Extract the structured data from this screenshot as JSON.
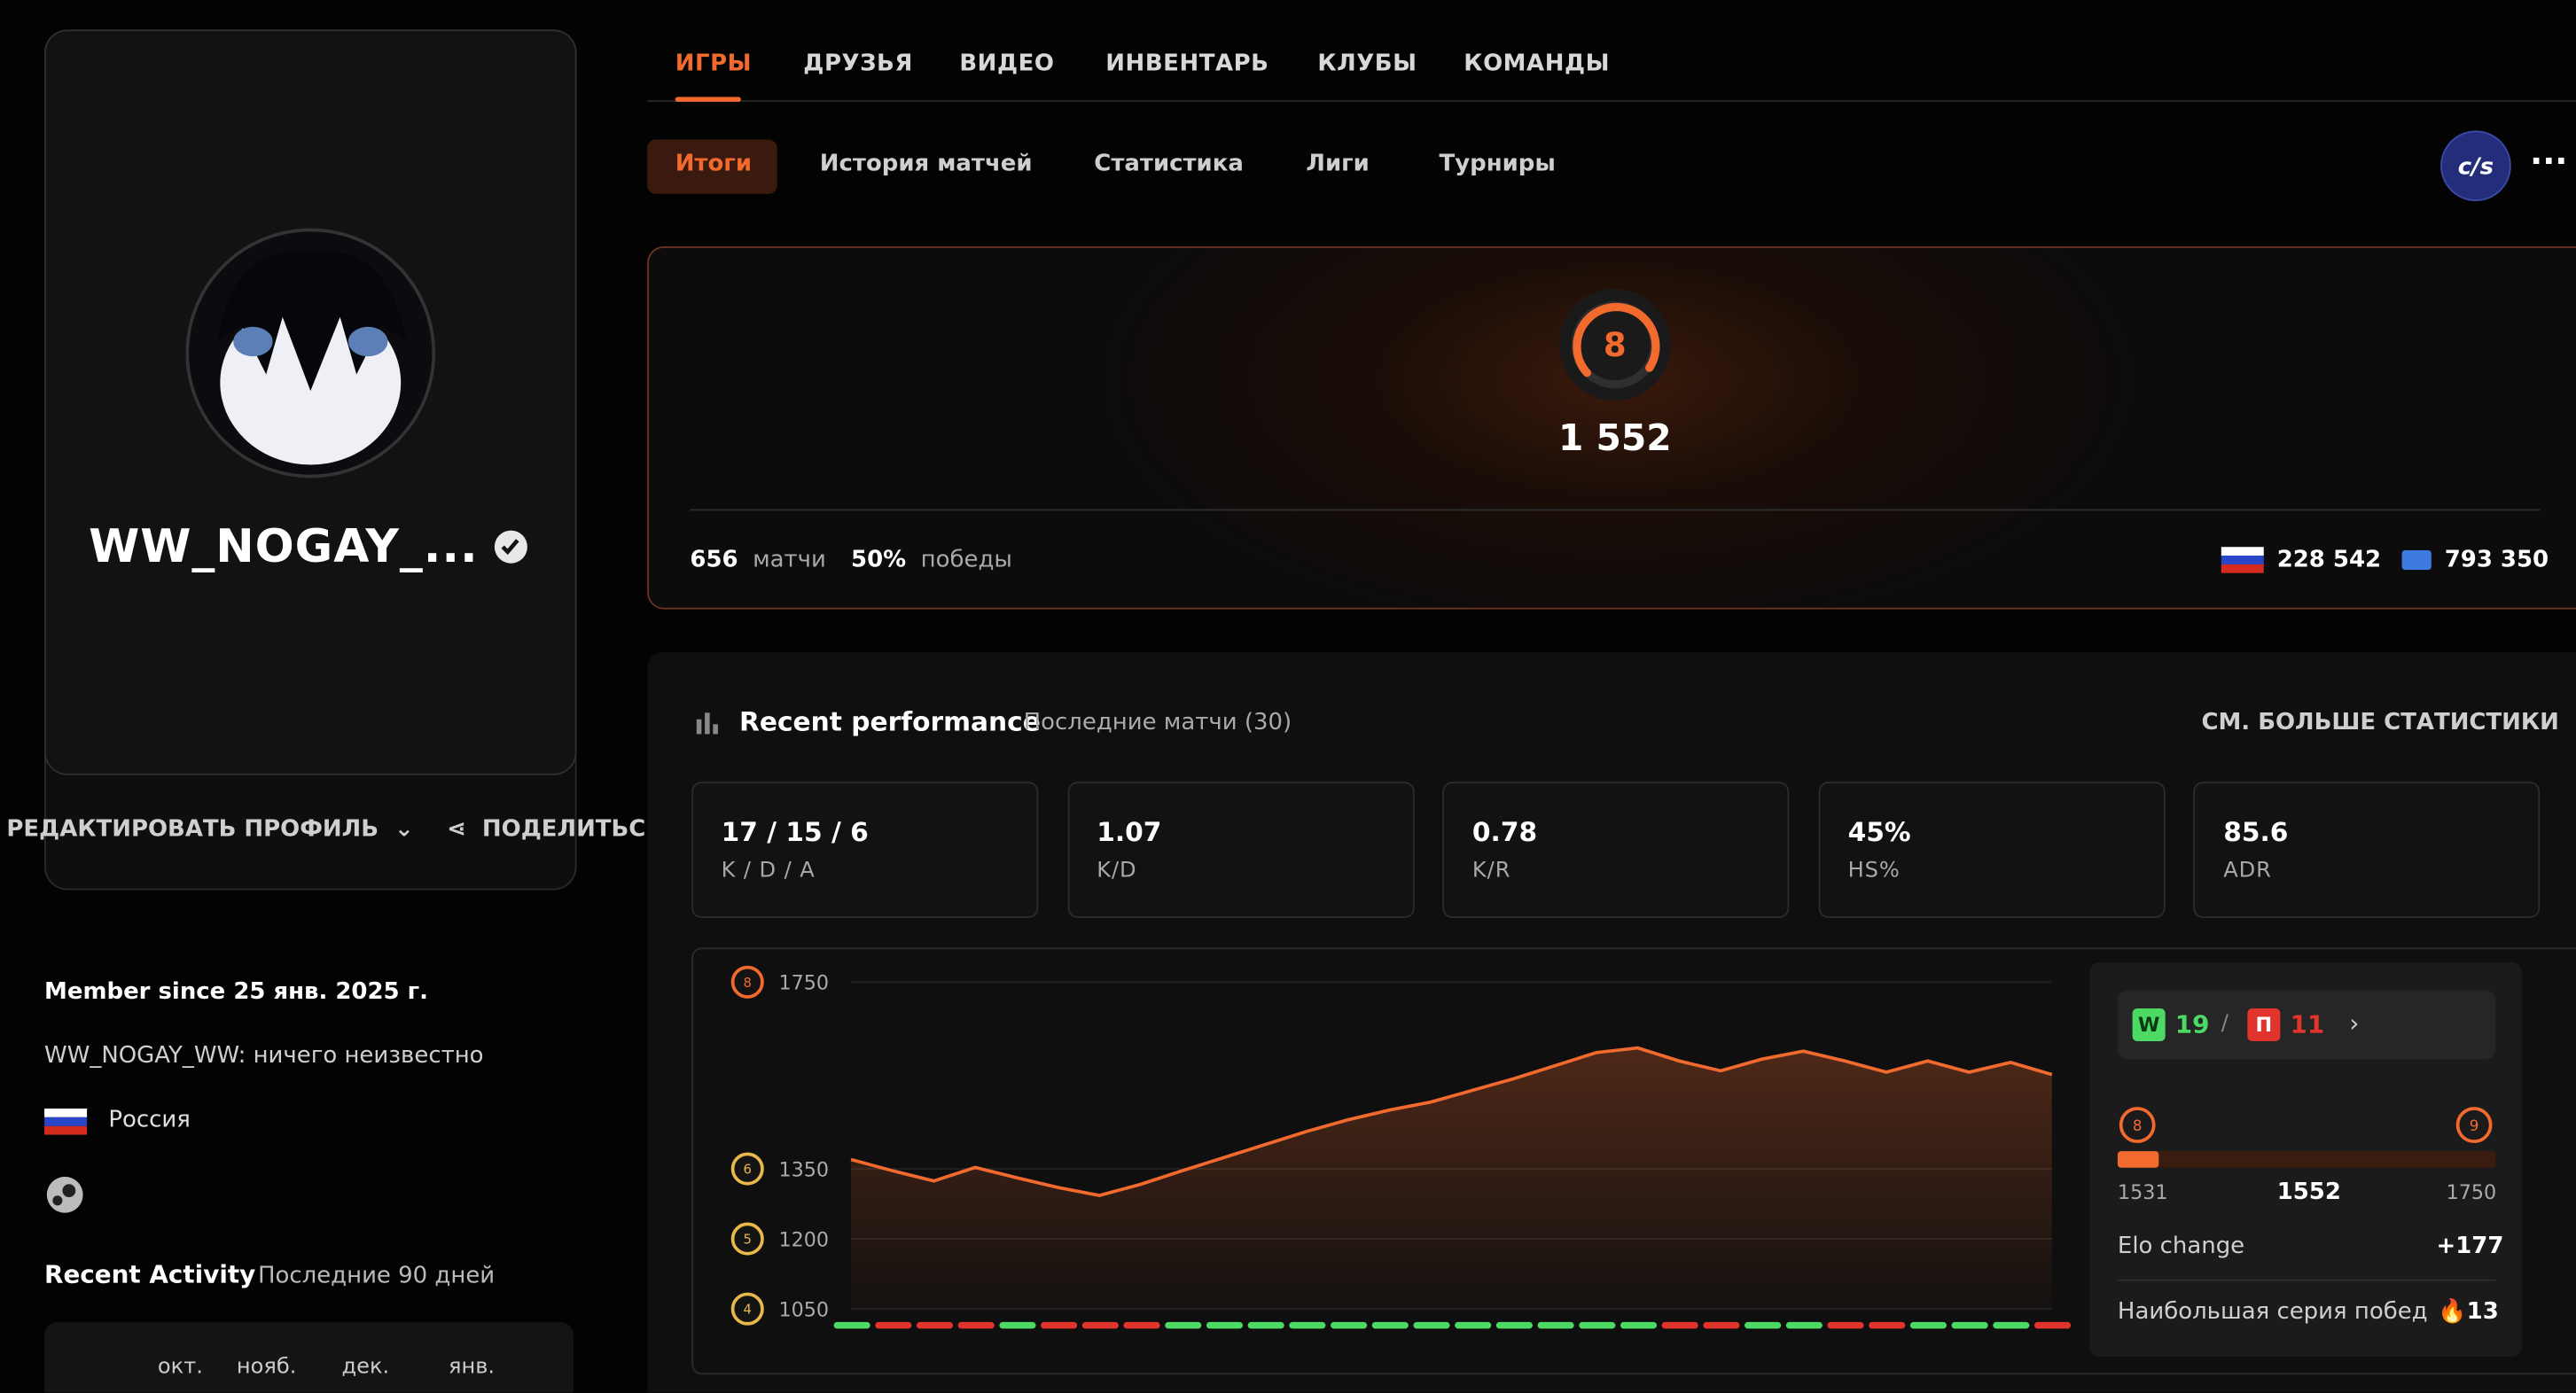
{
  "tabs": [
    "ИГРЫ",
    "ДРУЗЬЯ",
    "ВИДЕО",
    "ИНВЕНТАРЬ",
    "КЛУБЫ",
    "КОМАНДЫ"
  ],
  "subtabs": [
    "Итоги",
    "История матчей",
    "Статистика",
    "Лиги",
    "Турниры"
  ],
  "profile": {
    "nickname": "WW_NOGAY_...",
    "edit_button": "РЕДАКТИРОВАТЬ ПРОФИЛЬ",
    "share_button": "ПОДЕЛИТЬС",
    "member_since": "Member since 25 янв. 2025 г.",
    "bio": "WW_NOGAY_WW: ничего неизвестно",
    "country": "Россия"
  },
  "recent_activity": {
    "title": "Recent Activity",
    "subtitle": "Последние 90 дней",
    "months": [
      "окт.",
      "нояб.",
      "дек.",
      "янв."
    ]
  },
  "summary": {
    "level": "8",
    "elo": "1 552",
    "matches": "656",
    "matches_label": "матчи",
    "winrate": "50%",
    "winrate_label": "победы",
    "country_rank": "228 542",
    "region_rank": "793 350"
  },
  "performance": {
    "title": "Recent performance",
    "subtitle": "Последние матчи (30)",
    "more_link": "СМ. БОЛЬШЕ СТАТИСТИКИ",
    "stats": [
      {
        "value": "17 / 15 / 6",
        "label": "K / D / A"
      },
      {
        "value": "1.07",
        "label": "K/D"
      },
      {
        "value": "0.78",
        "label": "K/R"
      },
      {
        "value": "45%",
        "label": "HS%"
      },
      {
        "value": "85.6",
        "label": "ADR"
      }
    ],
    "wins_label": "W",
    "wins": "19",
    "losses_label": "П",
    "losses": "11",
    "level_from": "8",
    "level_to": "9",
    "elo_from": "1531",
    "elo_now": "1552",
    "elo_to": "1750",
    "elo_change_label": "Elo change",
    "elo_change": "+177",
    "streak_label": "Наибольшая серия побед",
    "streak": "13"
  },
  "chart_data": {
    "type": "line",
    "categories": [
      null,
      null,
      null,
      null,
      null,
      null,
      null,
      null,
      null,
      null,
      null,
      null,
      null,
      null,
      null,
      null,
      null,
      null,
      null,
      null,
      null,
      null,
      null,
      null,
      null,
      null,
      null,
      null,
      null,
      null
    ],
    "series": [
      {
        "color": "#f26a2e",
        "values": [
          1370,
          1346,
          1324,
          1353,
          1331,
          1310,
          1293,
          1317,
          1346,
          1374,
          1402,
          1430,
          1455,
          1476,
          1493,
          1518,
          1543,
          1571,
          1599,
          1609,
          1581,
          1560,
          1585,
          1602,
          1581,
          1557,
          1581,
          1557,
          1578,
          1552
        ]
      }
    ],
    "ylim": [
      1050,
      1750
    ],
    "yticks": [
      1050,
      1200,
      1350,
      1750
    ],
    "tick_levels": [
      "4",
      "5",
      "6",
      "8"
    ],
    "grid": true,
    "result_colors": [
      "#4cd964",
      "#e0342c",
      "#e0342c",
      "#e0342c",
      "#4cd964",
      "#e0342c",
      "#e0342c",
      "#e0342c",
      "#4cd964",
      "#4cd964",
      "#4cd964",
      "#4cd964",
      "#4cd964",
      "#4cd964",
      "#4cd964",
      "#4cd964",
      "#4cd964",
      "#4cd964",
      "#4cd964",
      "#4cd964",
      "#e0342c",
      "#e0342c",
      "#4cd964",
      "#4cd964",
      "#e0342c",
      "#e0342c",
      "#4cd964",
      "#4cd964",
      "#4cd964",
      "#e0342c"
    ]
  }
}
